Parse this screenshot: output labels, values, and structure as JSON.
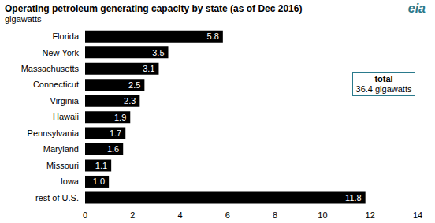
{
  "chart_data": {
    "type": "bar",
    "title": "Operating petroleum generating capacity by state (as of Dec 2016)",
    "subtitle": "gigawatts",
    "source": "eia",
    "annotation": {
      "title": "total",
      "text": "36.4 gigawatts"
    },
    "orientation": "horizontal",
    "categories": [
      "Florida",
      "New York",
      "Massachusetts",
      "Connecticut",
      "Virginia",
      "Hawaii",
      "Pennsylvania",
      "Maryland",
      "Missouri",
      "Iowa",
      "rest of U.S."
    ],
    "values": [
      5.8,
      3.5,
      3.1,
      2.5,
      2.3,
      1.9,
      1.7,
      1.6,
      1.1,
      1.0,
      11.8
    ],
    "color": "#000000",
    "xlim": [
      0,
      14
    ],
    "xticks": [
      0,
      2,
      4,
      6,
      8,
      10,
      12,
      14
    ],
    "grid": false,
    "data_labels": true
  }
}
